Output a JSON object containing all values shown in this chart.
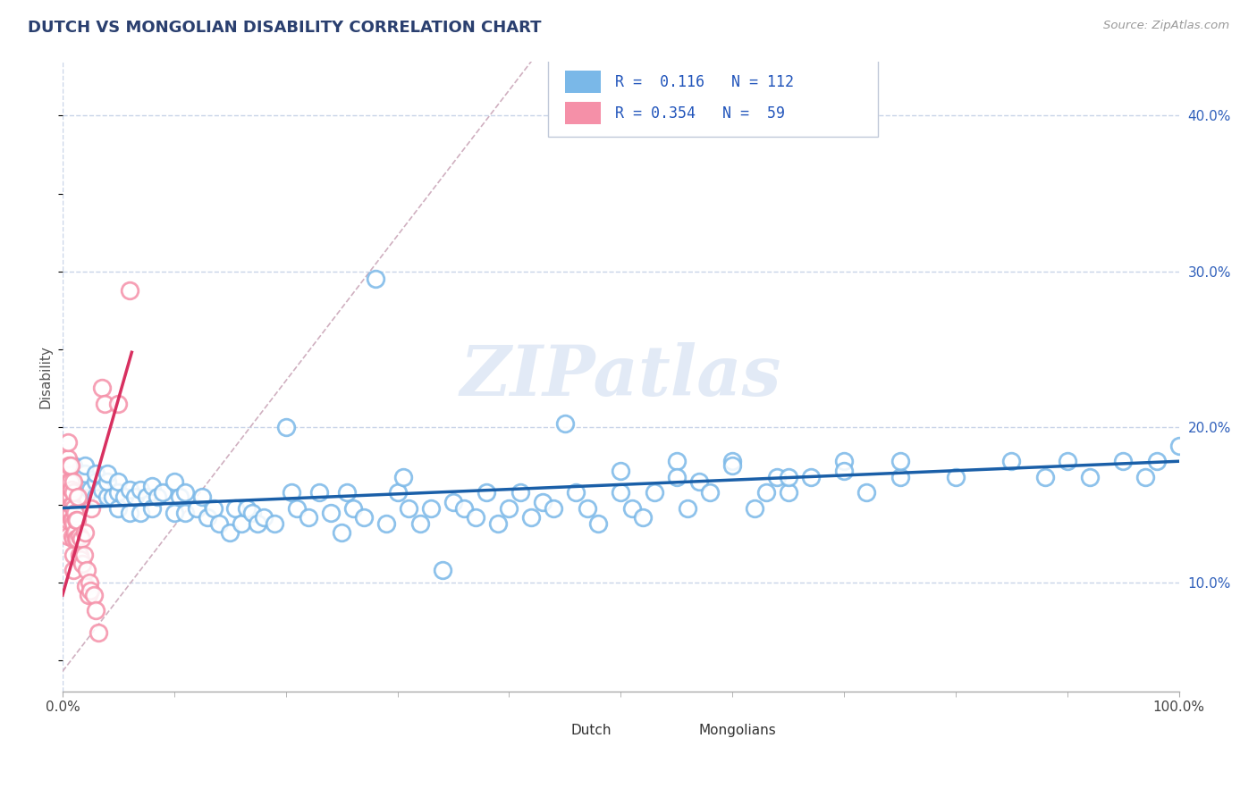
{
  "title": "DUTCH VS MONGOLIAN DISABILITY CORRELATION CHART",
  "source": "Source: ZipAtlas.com",
  "ylabel": "Disability",
  "watermark": "ZIPatlas",
  "xlim": [
    0,
    1.0
  ],
  "ylim": [
    0.03,
    0.435
  ],
  "xticks_minor": [
    0.1,
    0.2,
    0.3,
    0.4,
    0.5,
    0.6,
    0.7,
    0.8,
    0.9
  ],
  "yticks": [
    0.1,
    0.2,
    0.3,
    0.4
  ],
  "dutch_R": 0.116,
  "dutch_N": 112,
  "mongolian_R": 0.354,
  "mongolian_N": 59,
  "dutch_color": "#7ab8e8",
  "dutch_line_color": "#1a5fa8",
  "mongolian_color": "#f590a8",
  "mongolian_line_color": "#d83060",
  "background_color": "#ffffff",
  "grid_color": "#c8d4e8",
  "title_color": "#2a3f6f",
  "legend_text_color": "#2255bb",
  "dutch_scatter_x": [
    0.01,
    0.01,
    0.015,
    0.02,
    0.02,
    0.02,
    0.02,
    0.025,
    0.03,
    0.03,
    0.03,
    0.035,
    0.04,
    0.04,
    0.04,
    0.045,
    0.05,
    0.05,
    0.05,
    0.055,
    0.06,
    0.06,
    0.065,
    0.07,
    0.07,
    0.075,
    0.08,
    0.08,
    0.085,
    0.09,
    0.1,
    0.1,
    0.105,
    0.11,
    0.11,
    0.12,
    0.125,
    0.13,
    0.135,
    0.14,
    0.15,
    0.155,
    0.16,
    0.165,
    0.17,
    0.175,
    0.18,
    0.19,
    0.2,
    0.205,
    0.21,
    0.22,
    0.23,
    0.24,
    0.25,
    0.255,
    0.26,
    0.27,
    0.28,
    0.29,
    0.3,
    0.305,
    0.31,
    0.32,
    0.33,
    0.34,
    0.35,
    0.36,
    0.37,
    0.38,
    0.39,
    0.4,
    0.41,
    0.42,
    0.43,
    0.44,
    0.45,
    0.46,
    0.47,
    0.48,
    0.5,
    0.51,
    0.52,
    0.53,
    0.55,
    0.56,
    0.57,
    0.58,
    0.6,
    0.62,
    0.63,
    0.64,
    0.65,
    0.67,
    0.7,
    0.72,
    0.75,
    0.8,
    0.85,
    0.88,
    0.9,
    0.92,
    0.95,
    0.97,
    0.98,
    1.0,
    0.5,
    0.55,
    0.6,
    0.65,
    0.7,
    0.75
  ],
  "dutch_scatter_y": [
    0.165,
    0.175,
    0.17,
    0.155,
    0.165,
    0.17,
    0.175,
    0.16,
    0.155,
    0.165,
    0.17,
    0.16,
    0.155,
    0.165,
    0.17,
    0.155,
    0.148,
    0.158,
    0.165,
    0.155,
    0.145,
    0.16,
    0.155,
    0.145,
    0.16,
    0.155,
    0.148,
    0.162,
    0.155,
    0.158,
    0.145,
    0.165,
    0.155,
    0.145,
    0.158,
    0.148,
    0.155,
    0.142,
    0.148,
    0.138,
    0.132,
    0.148,
    0.138,
    0.148,
    0.145,
    0.138,
    0.142,
    0.138,
    0.2,
    0.158,
    0.148,
    0.142,
    0.158,
    0.145,
    0.132,
    0.158,
    0.148,
    0.142,
    0.295,
    0.138,
    0.158,
    0.168,
    0.148,
    0.138,
    0.148,
    0.108,
    0.152,
    0.148,
    0.142,
    0.158,
    0.138,
    0.148,
    0.158,
    0.142,
    0.152,
    0.148,
    0.202,
    0.158,
    0.148,
    0.138,
    0.158,
    0.148,
    0.142,
    0.158,
    0.178,
    0.148,
    0.165,
    0.158,
    0.178,
    0.148,
    0.158,
    0.168,
    0.158,
    0.168,
    0.178,
    0.158,
    0.168,
    0.168,
    0.178,
    0.168,
    0.178,
    0.168,
    0.178,
    0.168,
    0.178,
    0.188,
    0.172,
    0.168,
    0.175,
    0.168,
    0.172,
    0.178
  ],
  "mongolian_scatter_x": [
    0.004,
    0.004,
    0.004,
    0.004,
    0.005,
    0.005,
    0.005,
    0.005,
    0.005,
    0.005,
    0.005,
    0.006,
    0.006,
    0.006,
    0.006,
    0.007,
    0.007,
    0.007,
    0.007,
    0.008,
    0.008,
    0.008,
    0.009,
    0.009,
    0.009,
    0.01,
    0.01,
    0.01,
    0.01,
    0.01,
    0.01,
    0.01,
    0.011,
    0.011,
    0.012,
    0.012,
    0.013,
    0.013,
    0.014,
    0.015,
    0.015,
    0.016,
    0.017,
    0.018,
    0.019,
    0.02,
    0.021,
    0.022,
    0.023,
    0.024,
    0.025,
    0.026,
    0.028,
    0.03,
    0.032,
    0.035,
    0.038,
    0.05,
    0.06
  ],
  "mongolian_scatter_y": [
    0.135,
    0.145,
    0.155,
    0.165,
    0.13,
    0.14,
    0.15,
    0.16,
    0.17,
    0.18,
    0.19,
    0.145,
    0.155,
    0.165,
    0.175,
    0.145,
    0.155,
    0.165,
    0.175,
    0.14,
    0.15,
    0.16,
    0.13,
    0.14,
    0.15,
    0.108,
    0.118,
    0.128,
    0.138,
    0.148,
    0.158,
    0.165,
    0.132,
    0.145,
    0.128,
    0.14,
    0.128,
    0.14,
    0.155,
    0.118,
    0.13,
    0.115,
    0.128,
    0.112,
    0.118,
    0.132,
    0.098,
    0.108,
    0.092,
    0.1,
    0.095,
    0.148,
    0.092,
    0.082,
    0.068,
    0.225,
    0.215,
    0.215,
    0.288
  ],
  "dutch_trend_x": [
    0.0,
    1.0
  ],
  "dutch_trend_y": [
    0.148,
    0.178
  ],
  "mongol_trend_x": [
    0.0,
    0.062
  ],
  "mongol_trend_y": [
    0.092,
    0.248
  ],
  "diag_line_x": [
    0.0,
    0.42
  ],
  "diag_line_y": [
    0.043,
    0.435
  ]
}
